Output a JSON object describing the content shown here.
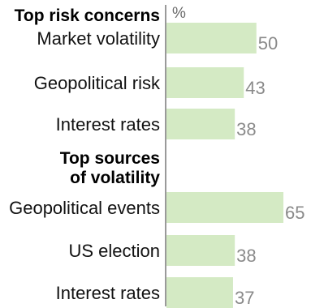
{
  "chart_data": {
    "type": "bar",
    "orientation": "horizontal",
    "unit_label": "%",
    "grid": false,
    "xlim": [
      0,
      65
    ],
    "groups": [
      {
        "title_lines": [
          "Top risk concerns"
        ],
        "categories": [
          "Market volatility",
          "Geopolitical risk",
          "Interest rates"
        ],
        "values": [
          50,
          43,
          38
        ]
      },
      {
        "title_lines": [
          "Top sources",
          "of volatility"
        ],
        "categories": [
          "Geopolitical events",
          "US election",
          "Interest rates"
        ],
        "values": [
          65,
          38,
          37
        ]
      }
    ],
    "colors": {
      "bar": "#d4eac4",
      "axis": "#9a9a9a",
      "value_text": "#8a8a8a",
      "category_text": "#111111"
    }
  }
}
